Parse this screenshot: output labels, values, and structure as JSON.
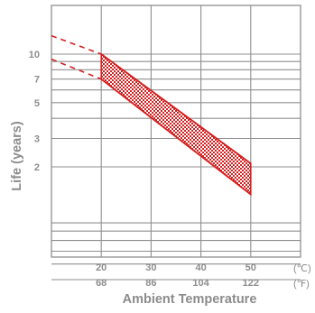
{
  "chart_data": {
    "type": "area",
    "title": "",
    "xlabel": "Ambient Temperature",
    "ylabel": "Life (years)",
    "x_unit_c": "(℃)",
    "x_unit_f": "(℉)",
    "x_ticks": [
      {
        "c": "20",
        "f": "68",
        "value": 20
      },
      {
        "c": "30",
        "f": "86",
        "value": 30
      },
      {
        "c": "40",
        "f": "104",
        "value": 40
      },
      {
        "c": "50",
        "f": "122",
        "value": 50
      }
    ],
    "y_ticks": [
      {
        "label": "10",
        "value": 10
      },
      {
        "label": "7",
        "value": 7
      },
      {
        "label": "5",
        "value": 5
      },
      {
        "label": "3",
        "value": 3
      },
      {
        "label": "2",
        "value": 2
      }
    ],
    "y_scale": "log",
    "xlim": [
      10,
      60
    ],
    "series": [
      {
        "x": [
          20,
          50
        ],
        "y": [
          10,
          2.1
        ]
      },
      {
        "x": [
          20,
          50
        ],
        "y": [
          7,
          1.35
        ]
      }
    ],
    "extrapolated": [
      {
        "x": [
          10,
          20
        ],
        "y": [
          13,
          10
        ]
      },
      {
        "x": [
          10,
          20
        ],
        "y": [
          9.3,
          7
        ]
      }
    ],
    "grid": true,
    "band_color": "#d42020",
    "grid_color": "#8f8f8f"
  }
}
